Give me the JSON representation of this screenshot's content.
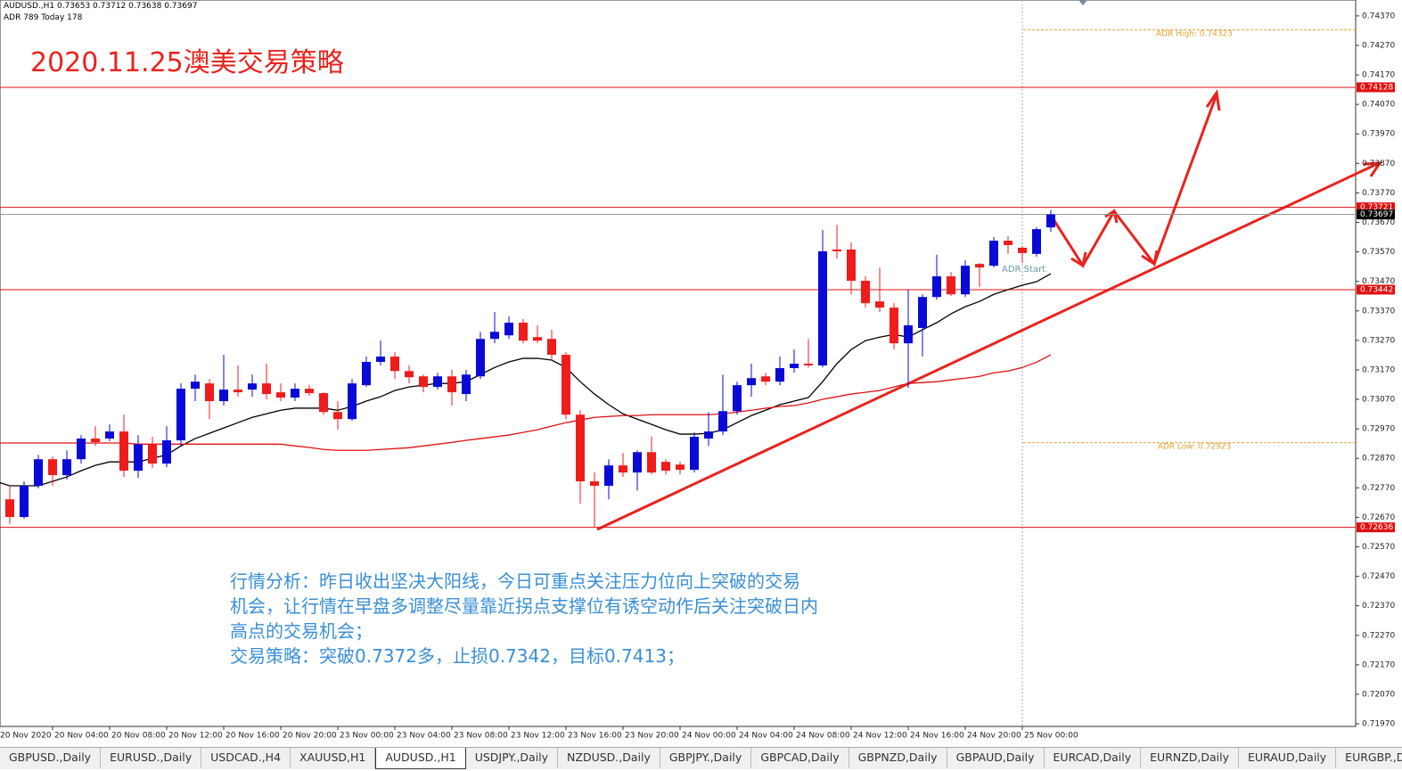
{
  "chart_data": {
    "type": "candlestick",
    "header": "AUDUSD.,H1  0.73653 0.73712 0.73638 0.73697",
    "header2": "ADR 789  Today 178",
    "title": "2020.11.25澳美交易策略",
    "categories": [
      "20 Nov 2020",
      null,
      null,
      null,
      "20 Nov 04:00",
      null,
      null,
      null,
      "20 Nov 08:00",
      null,
      null,
      null,
      "20 Nov 12:00",
      null,
      null,
      null,
      "20 Nov 16:00",
      null,
      null,
      null,
      "20 Nov 20:00",
      null,
      null,
      null,
      "23 Nov 00:00",
      null,
      null,
      null,
      "23 Nov 04:00",
      null,
      null,
      null,
      "23 Nov 08:00",
      null,
      null,
      null,
      "23 Nov 12:00",
      null,
      null,
      null,
      "23 Nov 16:00",
      null,
      null,
      null,
      "23 Nov 20:00",
      null,
      null,
      null,
      "24 Nov 00:00",
      null,
      null,
      null,
      "24 Nov 04:00",
      null,
      null,
      null,
      "24 Nov 08:00",
      null,
      null,
      null,
      "24 Nov 12:00",
      null,
      null,
      null,
      "24 Nov 16:00",
      null,
      null,
      null,
      "24 Nov 20:00",
      null,
      null,
      null,
      "25 Nov 00:00",
      null,
      null
    ],
    "open": [
      0.72822,
      0.72731,
      0.72671,
      0.72777,
      0.72867,
      0.72813,
      0.72867,
      0.72937,
      0.72937,
      0.72961,
      0.72828,
      0.72918,
      0.72852,
      0.72931,
      0.73106,
      0.73124,
      0.73064,
      0.73103,
      0.73103,
      0.73124,
      0.73094,
      0.73076,
      0.73106,
      0.73091,
      0.73027,
      0.73003,
      0.73118,
      0.73197,
      0.73215,
      0.73166,
      0.73148,
      0.73112,
      0.73148,
      0.73088,
      0.73148,
      0.73275,
      0.73287,
      0.7333,
      0.73281,
      0.73275,
      0.73221,
      0.73018,
      0.72792,
      0.72777,
      0.72846,
      0.72822,
      0.72891,
      0.72858,
      0.72849,
      0.72831,
      0.72937,
      0.72961,
      0.7303,
      0.73118,
      0.73148,
      0.7313,
      0.73176,
      0.73191,
      0.73185,
      0.73578,
      0.73578,
      0.73472,
      0.73402,
      0.73381,
      0.7326,
      0.73312,
      0.73417,
      0.73487,
      0.73426,
      0.73529,
      0.73523,
      0.73608,
      0.73584,
      0.73563,
      0.73653
    ],
    "high": [
      0.72837,
      0.72777,
      0.72792,
      0.72882,
      0.72876,
      0.72897,
      0.72949,
      0.72979,
      0.72985,
      0.73018,
      0.72949,
      0.72943,
      0.72979,
      0.73124,
      0.73154,
      0.73139,
      0.73221,
      0.73185,
      0.73154,
      0.73191,
      0.73124,
      0.73124,
      0.73118,
      0.73094,
      0.73064,
      0.73139,
      0.73215,
      0.73269,
      0.7323,
      0.73185,
      0.73154,
      0.7316,
      0.7317,
      0.7317,
      0.73299,
      0.73366,
      0.73351,
      0.73342,
      0.73321,
      0.73306,
      0.7323,
      0.73033,
      0.72822,
      0.72867,
      0.72888,
      0.72897,
      0.72943,
      0.72867,
      0.72858,
      0.72958,
      0.73027,
      0.73154,
      0.7313,
      0.73191,
      0.7316,
      0.73215,
      0.73239,
      0.73275,
      0.73644,
      0.73662,
      0.73602,
      0.73487,
      0.73517,
      0.73396,
      0.73442,
      0.73426,
      0.7356,
      0.73502,
      0.73541,
      0.73532,
      0.7362,
      0.73623,
      0.7359,
      0.73653,
      0.73712
    ],
    "low": [
      0.72716,
      0.72647,
      0.72665,
      0.72768,
      0.72777,
      0.72798,
      0.72852,
      0.72912,
      0.72928,
      0.72807,
      0.72804,
      0.72837,
      0.7284,
      0.72912,
      0.73064,
      0.73003,
      0.73049,
      0.73079,
      0.73079,
      0.7307,
      0.73064,
      0.73064,
      0.73082,
      0.73018,
      0.72967,
      0.72997,
      0.73112,
      0.73185,
      0.73139,
      0.73124,
      0.73094,
      0.73103,
      0.73049,
      0.73064,
      0.73139,
      0.7326,
      0.73275,
      0.7326,
      0.7326,
      0.732,
      0.73003,
      0.72716,
      0.72634,
      0.72731,
      0.72807,
      0.72761,
      0.72816,
      0.72816,
      0.72816,
      0.72822,
      0.72912,
      0.72949,
      0.73018,
      0.73079,
      0.73118,
      0.73118,
      0.7316,
      0.73178,
      0.73178,
      0.73547,
      0.73426,
      0.73381,
      0.73366,
      0.73239,
      0.73109,
      0.73215,
      0.73408,
      0.7342,
      0.73417,
      0.73451,
      0.73517,
      0.73563,
      0.73532,
      0.73554,
      0.73638
    ],
    "close": [
      0.72731,
      0.72671,
      0.72777,
      0.72867,
      0.72813,
      0.72867,
      0.72937,
      0.72925,
      0.72961,
      0.72828,
      0.72918,
      0.72852,
      0.72931,
      0.73106,
      0.7313,
      0.73064,
      0.73103,
      0.73094,
      0.73124,
      0.73088,
      0.73076,
      0.73106,
      0.73091,
      0.73027,
      0.73003,
      0.73124,
      0.73197,
      0.73215,
      0.73166,
      0.73145,
      0.73112,
      0.73148,
      0.73094,
      0.73154,
      0.73275,
      0.73299,
      0.7333,
      0.73269,
      0.73269,
      0.73221,
      0.73018,
      0.72792,
      0.72777,
      0.72846,
      0.72822,
      0.72891,
      0.72822,
      0.72828,
      0.72831,
      0.72943,
      0.72961,
      0.7303,
      0.73118,
      0.73142,
      0.7313,
      0.73176,
      0.73191,
      0.73185,
      0.73572,
      0.73572,
      0.73472,
      0.73396,
      0.73381,
      0.7326,
      0.73321,
      0.73417,
      0.73487,
      0.73426,
      0.73523,
      0.73517,
      0.73608,
      0.73593,
      0.73566,
      0.73647,
      0.73697
    ],
    "up_color": "#0a0ad8",
    "down_color": "#f01c1c",
    "ma": [
      {
        "color": "#000000",
        "values": [
          0.72792,
          0.72777,
          0.72777,
          0.72777,
          0.72792,
          0.72807,
          0.72828,
          0.72846,
          0.72858,
          0.72858,
          0.72858,
          0.7287,
          0.72882,
          0.72912,
          0.72937,
          0.72955,
          0.72973,
          0.72991,
          0.73009,
          0.73021,
          0.73033,
          0.7304,
          0.7304,
          0.7304,
          0.73033,
          0.73046,
          0.73064,
          0.73079,
          0.731,
          0.73112,
          0.73118,
          0.73124,
          0.73124,
          0.7313,
          0.73154,
          0.73178,
          0.73197,
          0.73209,
          0.73209,
          0.73203,
          0.73178,
          0.7313,
          0.73088,
          0.73052,
          0.73021,
          0.73003,
          0.72985,
          0.72967,
          0.72952,
          0.72952,
          0.72955,
          0.72967,
          0.72991,
          0.73015,
          0.73033,
          0.73052,
          0.73064,
          0.73076,
          0.7313,
          0.73191,
          0.73239,
          0.73269,
          0.73281,
          0.7329,
          0.73281,
          0.73306,
          0.7333,
          0.7336,
          0.73384,
          0.73402,
          0.73426,
          0.73442,
          0.73457,
          0.73469,
          0.73496
        ]
      },
      {
        "color": "#e01010",
        "values": [
          0.72922,
          0.72922,
          0.72922,
          0.72922,
          0.72922,
          0.72922,
          0.72922,
          0.72922,
          0.72922,
          0.72922,
          0.72918,
          0.72918,
          0.72918,
          0.72918,
          0.72918,
          0.72918,
          0.72918,
          0.72918,
          0.72918,
          0.72918,
          0.72918,
          0.72912,
          0.72907,
          0.729,
          0.72897,
          0.72897,
          0.72897,
          0.729,
          0.72903,
          0.72906,
          0.72912,
          0.72918,
          0.72924,
          0.72931,
          0.72937,
          0.72943,
          0.72949,
          0.72958,
          0.72967,
          0.72979,
          0.72991,
          0.73,
          0.73009,
          0.73012,
          0.73015,
          0.73015,
          0.73018,
          0.73018,
          0.73018,
          0.73018,
          0.73018,
          0.73021,
          0.73027,
          0.73033,
          0.7304,
          0.73046,
          0.73049,
          0.73058,
          0.7307,
          0.73079,
          0.73088,
          0.73094,
          0.731,
          0.73112,
          0.73124,
          0.73127,
          0.7313,
          0.73136,
          0.73142,
          0.73148,
          0.7316,
          0.73166,
          0.73178,
          0.73196,
          0.73221
        ]
      }
    ],
    "ylim": [
      0.71961,
      0.74424
    ],
    "yticks": [
      {
        "value": 0.7437,
        "label": "0.74370"
      },
      {
        "value": 0.7427,
        "label": "0.74270"
      },
      {
        "value": 0.7417,
        "label": "0.74170"
      },
      {
        "value": 0.7407,
        "label": "0.74070"
      },
      {
        "value": 0.7397,
        "label": "0.73970"
      },
      {
        "value": 0.7387,
        "label": "0.73870"
      },
      {
        "value": 0.7377,
        "label": "0.73770"
      },
      {
        "value": 0.7367,
        "label": "0.73670"
      },
      {
        "value": 0.7357,
        "label": "0.73570"
      },
      {
        "value": 0.7347,
        "label": "0.73470"
      },
      {
        "value": 0.7337,
        "label": "0.73370"
      },
      {
        "value": 0.7327,
        "label": "0.73270"
      },
      {
        "value": 0.7317,
        "label": "0.73170"
      },
      {
        "value": 0.7307,
        "label": "0.73070"
      },
      {
        "value": 0.7297,
        "label": "0.72970"
      },
      {
        "value": 0.7287,
        "label": "0.72870"
      },
      {
        "value": 0.7277,
        "label": "0.72770"
      },
      {
        "value": 0.7267,
        "label": "0.72670"
      },
      {
        "value": 0.7257,
        "label": "0.72570"
      },
      {
        "value": 0.7247,
        "label": "0.72470"
      },
      {
        "value": 0.7237,
        "label": "0.72370"
      },
      {
        "value": 0.7227,
        "label": "0.72270"
      },
      {
        "value": 0.7217,
        "label": "0.72170"
      },
      {
        "value": 0.7207,
        "label": "0.72070"
      },
      {
        "value": 0.7197,
        "label": "0.71970"
      }
    ],
    "levels": [
      0.74128,
      0.73721,
      0.73442,
      0.72636
    ],
    "level_color": "#e01010",
    "price": 0.73697,
    "adr": [
      {
        "value": 0.74323,
        "label": "ADR High: 0.74323"
      },
      {
        "value": 0.72923,
        "label": "ADR Low: 0.72923"
      }
    ],
    "adr_start": "ADR Start",
    "annotation": [
      "行情分析：昨日收出坚决大阳线，今日可重点关注压力位向上突破的交易",
      "机会，让行情在早盘多调整尽量靠近拐点支撑位有诱空动作后关注突破日内",
      "高点的交易机会；",
      "交易策略：突破0.7372多，止损0.7342，目标0.7413；"
    ]
  },
  "tabs": {
    "items": [
      "GBPUSD.,Daily",
      "EURUSD.,Daily",
      "USDCAD.,H4",
      "XAUUSD,H1",
      "AUDUSD.,H1",
      "USDJPY.,Daily",
      "NZDUSD.,Daily",
      "GBPJPY.,Daily",
      "GBPCAD,Daily",
      "GBPNZD,Daily",
      "GBPAUD,Daily",
      "EURCAD,Daily",
      "EURNZD,Daily",
      "EURAUD,Daily",
      "EURGBP.,Daily"
    ],
    "active": 4
  }
}
